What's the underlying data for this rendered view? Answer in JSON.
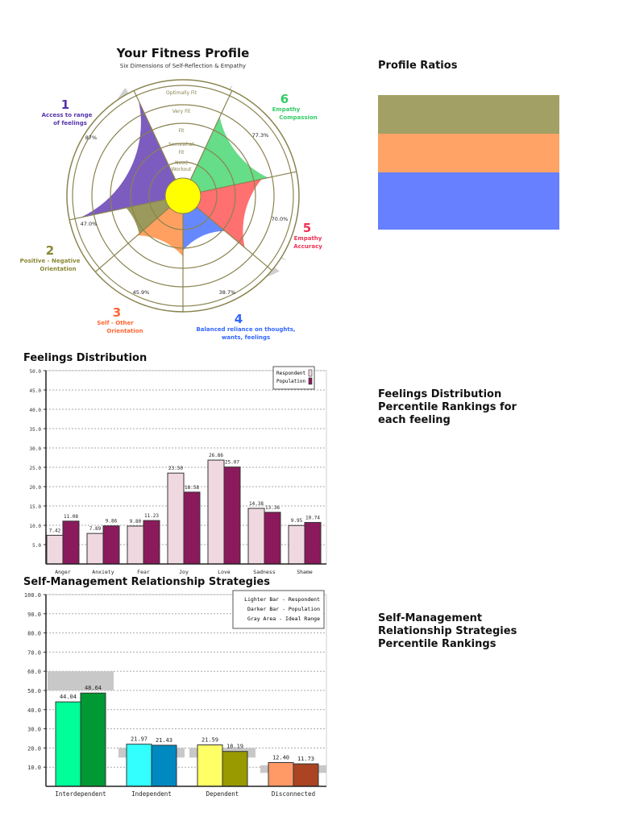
{
  "profile": {
    "title": "Your Fitness Profile",
    "subtitle": "Six Dimensions of Self-Reflection & Empathy",
    "ring_labels": [
      "Optimally Fit",
      "Very Fit",
      "Fit",
      "Somewhat",
      "Fit",
      "Need",
      "Workout"
    ],
    "dimensions": [
      {
        "number": "1",
        "lines": [
          "Access to range",
          "of feelings"
        ],
        "value_label": "87%",
        "color": "#7c5cbf",
        "label_color": "#5533aa"
      },
      {
        "number": "2",
        "lines": [
          "Positive - Negative",
          "Orientation"
        ],
        "value_label": "47.0%",
        "color": "#9b9a5c",
        "label_color": "#888833"
      },
      {
        "number": "3",
        "lines": [
          "Self - Other",
          "Orientation"
        ],
        "value_label": "45.9%",
        "color": "#ffa060",
        "label_color": "#ff6633"
      },
      {
        "number": "4",
        "lines": [
          "Balanced reliance on thoughts,",
          "wants, feelings"
        ],
        "value_label": "38.7%",
        "color": "#6688ff",
        "label_color": "#3366ff"
      },
      {
        "number": "5",
        "lines": [
          "Empathy",
          "Accuracy"
        ],
        "value_label": "70.0%",
        "color": "#ff7070",
        "label_color": "#ee3355"
      },
      {
        "number": "6",
        "lines": [
          "Empathy",
          "Compassion"
        ],
        "value_label": "77.3%",
        "color": "#66dd88",
        "label_color": "#33cc66"
      }
    ]
  },
  "ratios": {
    "title": "Profile Ratios",
    "colors": [
      "#a3a066",
      "#ffa366",
      "#6680ff"
    ]
  },
  "feelings": {
    "heading": "Feelings Distribution",
    "side_text": "Feelings Distribution Percentile Rankings for each feeling"
  },
  "strategies": {
    "heading": "Self-Management Relationship Strategies",
    "side_text": "Self-Management Relationship Strategies Percentile Rankings"
  },
  "chart_data": [
    {
      "type": "bar",
      "categories": [
        "Anger",
        "Anxiety",
        "Fear",
        "Joy",
        "Love",
        "Sadness",
        "Shame"
      ],
      "series": [
        {
          "name": "Respondent",
          "values": [
            7.42,
            7.89,
            9.8,
            23.5,
            26.86,
            14.38,
            9.95
          ],
          "labels": [
            "7.42",
            "7.89",
            "9.80",
            "23.50",
            "26.86",
            "14.38",
            "9.95"
          ],
          "color": "#f0d8e0"
        },
        {
          "name": "Population",
          "values": [
            11.08,
            9.86,
            11.23,
            18.58,
            25.07,
            13.36,
            10.74
          ],
          "labels": [
            "11.08",
            "9.86",
            "11.23",
            "18.58",
            "25.07",
            "13.36",
            "10.74"
          ],
          "color": "#8b1a5c"
        }
      ],
      "ylim": [
        0,
        50
      ],
      "yticks": [
        "5.0",
        "10.0",
        "15.0",
        "20.0",
        "25.0",
        "30.0",
        "35.0",
        "40.0",
        "45.0",
        "50.0"
      ],
      "grid": true,
      "legend": "top-right"
    },
    {
      "type": "bar",
      "categories": [
        "Interdependent",
        "Independent",
        "Dependent",
        "Disconnected"
      ],
      "series": [
        {
          "name": "Respondent",
          "values": [
            44.04,
            21.97,
            21.59,
            12.4
          ],
          "labels": [
            "44.04",
            "21.97",
            "21.59",
            "12.40"
          ],
          "colors": [
            "#00ff99",
            "#33ffff",
            "#ffff66",
            "#ff9966"
          ]
        },
        {
          "name": "Population",
          "values": [
            48.64,
            21.43,
            18.19,
            11.73
          ],
          "labels": [
            "48.64",
            "21.43",
            "18.19",
            "11.73"
          ],
          "colors": [
            "#009933",
            "#0088c0",
            "#999900",
            "#aa4422"
          ]
        }
      ],
      "ideal_ranges": [
        [
          50,
          60
        ],
        [
          15,
          20
        ],
        [
          15,
          20
        ],
        [
          7,
          11
        ]
      ],
      "ylim": [
        0,
        100
      ],
      "yticks": [
        "10.0",
        "20.0",
        "30.0",
        "40.0",
        "50.0",
        "60.0",
        "70.0",
        "80.0",
        "90.0",
        "100.0"
      ],
      "grid": true,
      "legend": "top-right",
      "legend_lines": [
        "Lighter Bar - Respondent",
        "Darker Bar - Population",
        "Gray Area - Ideal Range"
      ]
    }
  ]
}
